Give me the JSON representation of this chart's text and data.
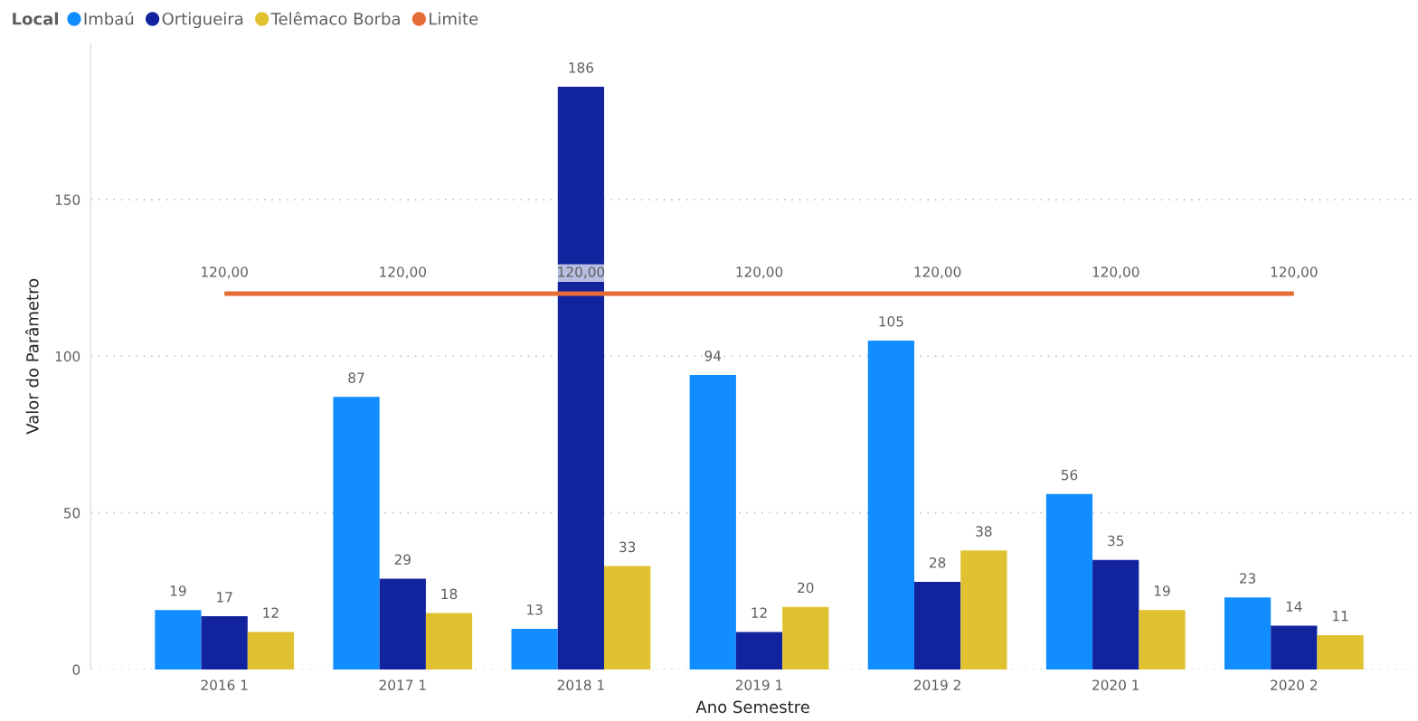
{
  "chart_data": {
    "type": "bar",
    "xlabel": "Ano Semestre",
    "ylabel": "Valor do Parâmetro",
    "legend_title": "Local",
    "categories": [
      "2016 1",
      "2017 1",
      "2018 1",
      "2019 1",
      "2019 2",
      "2020 1",
      "2020 2"
    ],
    "series": [
      {
        "name": "Imbaú",
        "color": "#118dff",
        "values": [
          19,
          87,
          13,
          94,
          105,
          56,
          23
        ]
      },
      {
        "name": "Ortigueira",
        "color": "#12239e",
        "values": [
          17,
          29,
          186,
          12,
          28,
          35,
          14
        ]
      },
      {
        "name": "Telêmaco Borba",
        "color": "#e0c130",
        "values": [
          12,
          18,
          33,
          20,
          38,
          19,
          11
        ]
      },
      {
        "name": "Limite",
        "type": "line",
        "color": "#e66c37",
        "values": [
          120,
          120,
          120,
          120,
          120,
          120,
          120
        ],
        "value_labels": [
          "120,00",
          "120,00",
          "120,00",
          "120,00",
          "120,00",
          "120,00",
          "120,00"
        ]
      }
    ],
    "ylim": [
      0,
      200
    ],
    "yticks": [
      0,
      50,
      100,
      150
    ],
    "grid": "y",
    "legend": "top left",
    "data_labels": true
  }
}
